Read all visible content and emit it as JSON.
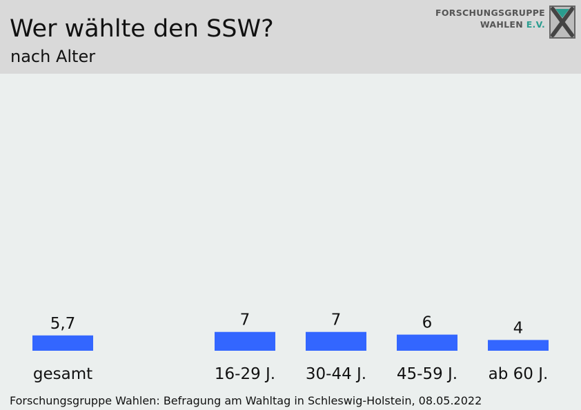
{
  "header": {
    "title": "Wer wählte den SSW?",
    "subtitle": "nach Alter",
    "logo_line1": "FORSCHUNGSGRUPPE",
    "logo_line2_a": "WAHLEN",
    "logo_line2_b": "E.V."
  },
  "footer": {
    "source": "Forschungsgruppe Wahlen: Befragung am Wahltag in Schleswig-Holstein, 08.05.2022"
  },
  "colors": {
    "bar": "#3366ff",
    "header_bg": "#d9d9d9",
    "chart_bg": "#ebefee"
  },
  "chart_data": {
    "type": "bar",
    "title": "Wer wählte den SSW?",
    "subtitle": "nach Alter",
    "categories": [
      "gesamt",
      "16-29 J.",
      "30-44 J.",
      "45-59 J.",
      "ab 60 J."
    ],
    "values": [
      5.7,
      7,
      7,
      6,
      4
    ],
    "value_labels": [
      "5,7",
      "7",
      "7",
      "6",
      "4"
    ],
    "xlabel": "",
    "ylabel": "",
    "ylim": [
      0,
      100
    ],
    "grid": false,
    "legend": "none"
  }
}
